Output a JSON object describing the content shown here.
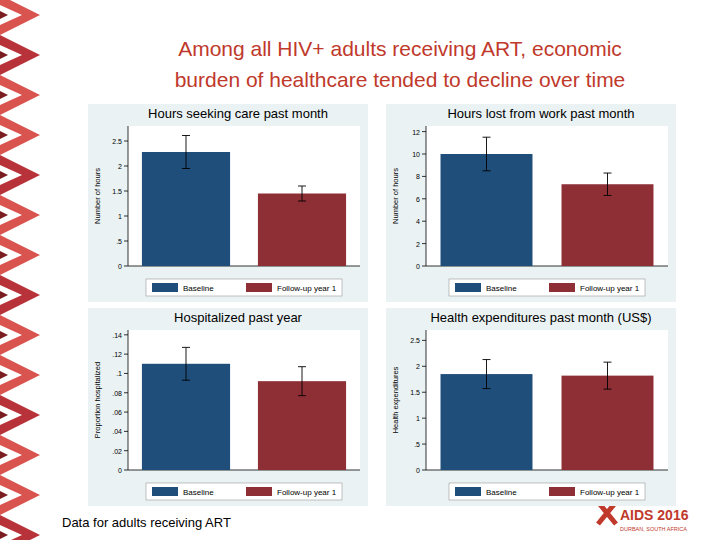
{
  "title": [
    "Among all HIV+ adults receiving ART, economic",
    "burden of healthcare tended to decline over time"
  ],
  "footnote": "Data for adults receiving ART",
  "logo": {
    "name": "AIDS 2016",
    "place": "DURBAN, SOUTH AFRICA"
  },
  "chart_data": [
    {
      "type": "bar",
      "title": "Hours seeking care past month",
      "y_label": "Number of hours",
      "categories": [
        "Baseline",
        "Follow-up year 1"
      ],
      "values": [
        2.28,
        1.45
      ],
      "errors": [
        0.33,
        0.15
      ],
      "colors": [
        "#1f4e7a",
        "#8e2f36"
      ],
      "ylim": [
        0,
        2.8
      ],
      "yticks": [
        0,
        {
          "value": 0.5,
          "label": ".5"
        },
        1,
        1.5,
        2,
        2.5
      ],
      "grid": false,
      "legend": "bottom"
    },
    {
      "type": "bar",
      "title": "Hours lost from work past month",
      "y_label": "Number of hours",
      "categories": [
        "Baseline",
        "Follow-up year 1"
      ],
      "values": [
        10.0,
        7.3
      ],
      "errors": [
        1.5,
        1.0
      ],
      "colors": [
        "#1f4e7a",
        "#8e2f36"
      ],
      "ylim": [
        0,
        12.5
      ],
      "yticks": [
        0,
        2,
        4,
        6,
        8,
        10,
        12
      ],
      "grid": false,
      "legend": "bottom"
    },
    {
      "type": "bar",
      "title": "Hospitalized past year",
      "y_label": "Proportion hospitalized",
      "categories": [
        "Baseline",
        "Follow-up year 1"
      ],
      "values": [
        0.11,
        0.092
      ],
      "errors": [
        0.017,
        0.015
      ],
      "colors": [
        "#1f4e7a",
        "#8e2f36"
      ],
      "ylim": [
        0,
        0.145
      ],
      "yticks": [
        0,
        {
          "value": 0.02,
          "label": ".02"
        },
        {
          "value": 0.04,
          "label": ".04"
        },
        {
          "value": 0.06,
          "label": ".06"
        },
        {
          "value": 0.08,
          "label": ".08"
        },
        {
          "value": 0.1,
          "label": ".1"
        },
        {
          "value": 0.12,
          "label": ".12"
        },
        {
          "value": 0.14,
          "label": ".14"
        }
      ],
      "grid": false,
      "legend": "bottom"
    },
    {
      "type": "bar",
      "title": "Health expenditures past month (US$)",
      "y_label": "Health expenditures",
      "categories": [
        "Baseline",
        "Follow-up year 1"
      ],
      "values": [
        1.85,
        1.82
      ],
      "errors": [
        0.28,
        0.26
      ],
      "colors": [
        "#1f4e7a",
        "#8e2f36"
      ],
      "ylim": [
        0,
        2.7
      ],
      "yticks": [
        0,
        {
          "value": 0.5,
          "label": ".5"
        },
        1,
        1.5,
        2,
        2.5
      ],
      "grid": false,
      "legend": "bottom"
    }
  ]
}
